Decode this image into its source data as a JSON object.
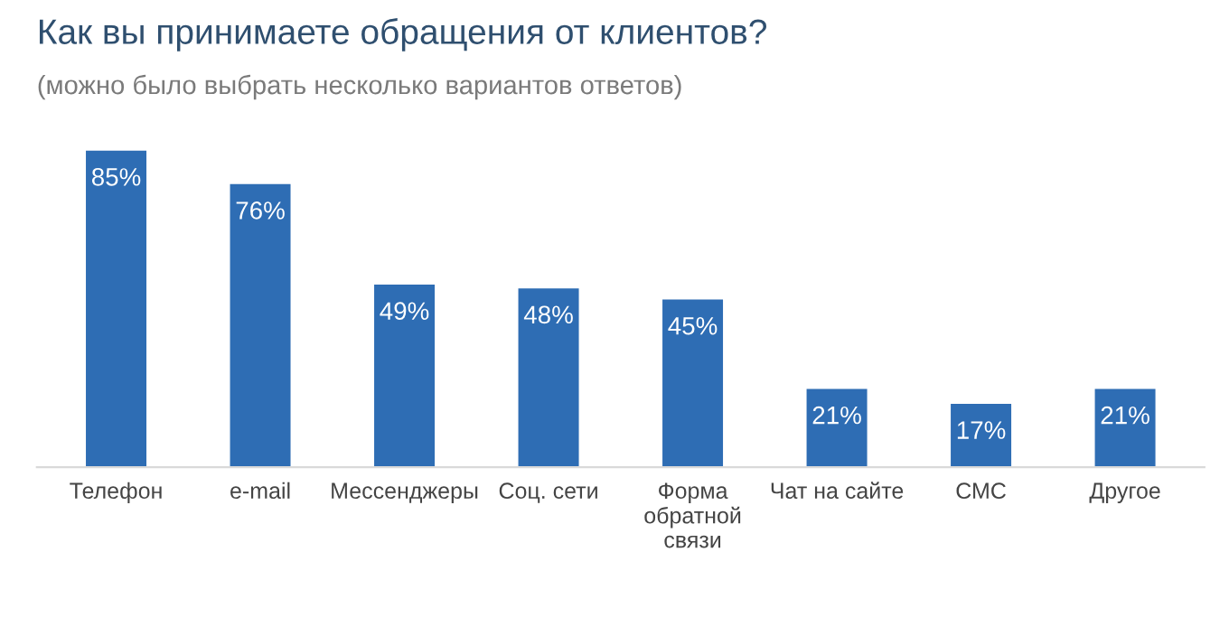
{
  "chart_data": {
    "type": "bar",
    "title": "Как вы принимаете обращения от клиентов?",
    "subtitle": "(можно было выбрать несколько вариантов ответов)",
    "categories": [
      "Телефон",
      "e-mail",
      "Мессенджеры",
      "Соц. сети",
      "Форма\nобратной\nсвязи",
      "Чат на сайте",
      "СМС",
      "Другое"
    ],
    "values": [
      85,
      76,
      49,
      48,
      45,
      21,
      17,
      21
    ],
    "value_labels": [
      "85%",
      "76%",
      "49%",
      "48%",
      "45%",
      "21%",
      "17%",
      "21%"
    ],
    "color": "#2e6db4",
    "grid": false,
    "legend": false
  }
}
